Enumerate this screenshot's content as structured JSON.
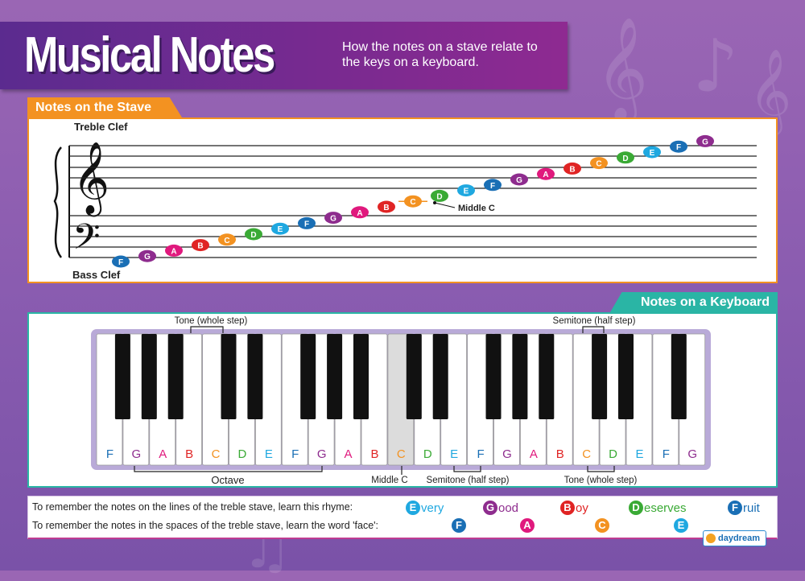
{
  "header": {
    "title": "Musical Notes",
    "subtitle": "How the notes on a stave relate to the keys on a keyboard."
  },
  "colors": {
    "F": "#1a6fb5",
    "G": "#8e2c8e",
    "A": "#e0197d",
    "B": "#e02424",
    "C": "#f39221",
    "D": "#3aaa35",
    "E": "#1fa8e0",
    "stave_border": "#f39221",
    "keyboard_border": "#2ab5a5"
  },
  "stave": {
    "tab_label": "Notes on the Stave",
    "treble_label": "Treble Clef",
    "bass_label": "Bass Clef",
    "middle_c_label": "Middle C",
    "notes": [
      "F",
      "G",
      "A",
      "B",
      "C",
      "D",
      "E",
      "F",
      "G",
      "A",
      "B",
      "C",
      "D",
      "E",
      "F",
      "G",
      "A",
      "B",
      "C",
      "D",
      "E",
      "F",
      "G"
    ],
    "middle_c_index": 11
  },
  "keyboard": {
    "tab_label": "Notes on a Keyboard",
    "white_keys": [
      "F",
      "G",
      "A",
      "B",
      "C",
      "D",
      "E",
      "F",
      "G",
      "A",
      "B",
      "C",
      "D",
      "E",
      "F",
      "G",
      "A",
      "B",
      "C",
      "D",
      "E",
      "F",
      "G"
    ],
    "middle_c_index": 11,
    "annotations": {
      "tone_top": "Tone (whole step)",
      "semitone_top": "Semitone (half step)",
      "octave": "Octave",
      "middle_c": "Middle C",
      "semitone_bottom": "Semitone (half step)",
      "tone_bottom": "Tone (whole step)"
    }
  },
  "mnemonics": {
    "lines_text": "To remember the notes on the lines of the treble stave, learn this rhyme:",
    "lines_words": [
      {
        "letter": "E",
        "rest": "very"
      },
      {
        "letter": "G",
        "rest": "ood"
      },
      {
        "letter": "B",
        "rest": "oy"
      },
      {
        "letter": "D",
        "rest": "eserves"
      },
      {
        "letter": "F",
        "rest": "ruit"
      }
    ],
    "spaces_text": "To remember the notes in the spaces of the treble stave, learn the word 'face':",
    "spaces_letters": [
      "F",
      "A",
      "C",
      "E"
    ]
  },
  "logo": {
    "text": "daydream"
  }
}
